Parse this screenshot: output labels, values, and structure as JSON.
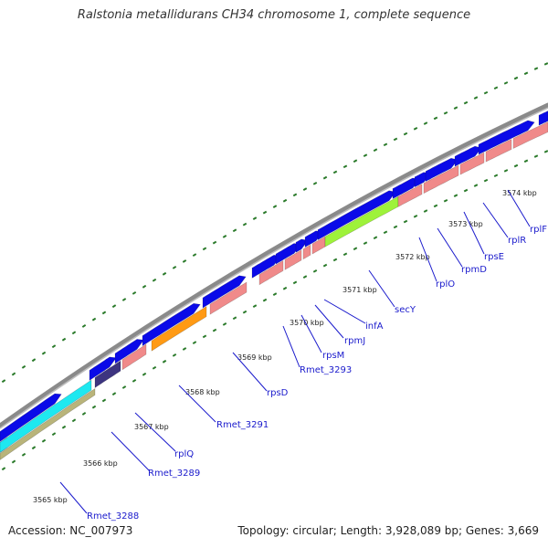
{
  "title": "Ralstonia metallidurans CH34 chromosome 1, complete sequence",
  "footer": {
    "accession": "Accession: NC_007973",
    "topology": "Topology: circular; Length: 3,928,089 bp; Genes: 3,669"
  },
  "colors": {
    "backbone": "#8a8a8a",
    "cds_top": "#0a0ae8",
    "rna_pink": "#f08a8a",
    "secY_green": "#9ef23a",
    "orange": "#ff9a14",
    "dark_purple": "#3d3480",
    "cyan": "#1ee8f0",
    "olive": "#b9b47a",
    "tick": "#2a7a2a",
    "label": "#1a1acc"
  },
  "kbp_ticks": [
    "3565 kbp",
    "3566 kbp",
    "3567 kbp",
    "3568 kbp",
    "3569 kbp",
    "3570 kbp",
    "3571 kbp",
    "3572 kbp",
    "3573 kbp",
    "3574 kbp"
  ],
  "gene_labels": [
    "Rmet_3288",
    "Rmet_3289",
    "rplQ",
    "Rmet_3291",
    "rpsD",
    "Rmet_3293",
    "rpsM",
    "rpmJ",
    "infA",
    "secY",
    "rplO",
    "rpmD",
    "rpsE",
    "rplR",
    "rplF"
  ]
}
